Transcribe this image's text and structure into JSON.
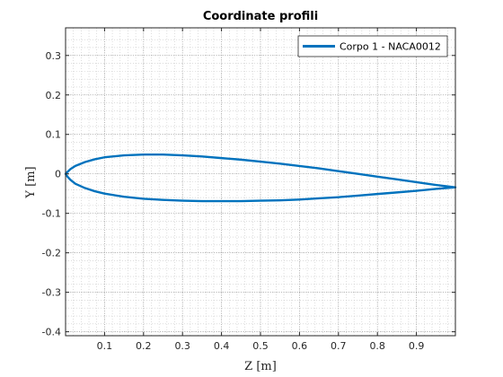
{
  "chart_data": {
    "type": "line",
    "title": "Coordinate profili",
    "xlabel": "Z [m]",
    "ylabel": "Y [m]",
    "xlim": [
      0,
      1
    ],
    "ylim": [
      -0.41,
      0.37
    ],
    "xticks": [
      0.1,
      0.2,
      0.3,
      0.4,
      0.5,
      0.6,
      0.7,
      0.8,
      0.9
    ],
    "xtick_labels": [
      "0.1",
      "0.2",
      "0.3",
      "0.4",
      "0.5",
      "0.6",
      "0.7",
      "0.8",
      "0.9"
    ],
    "yticks": [
      0.3,
      0.2,
      0.1,
      0,
      -0.1,
      -0.2,
      -0.3,
      -0.4
    ],
    "ytick_labels": [
      "0.3",
      "0.2",
      "0.1",
      "0",
      "-0.1",
      "-0.2",
      "-0.3",
      "-0.4"
    ],
    "grid": true,
    "minor_grid": true,
    "legend_position": "top-right",
    "series": [
      {
        "name": "Corpo 1 - NACA0012",
        "color": "#0072BD",
        "x": [
          1.0,
          0.95,
          0.9,
          0.85,
          0.8,
          0.75,
          0.7,
          0.65,
          0.6,
          0.55,
          0.5,
          0.45,
          0.4,
          0.35,
          0.3,
          0.25,
          0.2,
          0.15,
          0.1,
          0.075,
          0.05,
          0.025,
          0.0125,
          0.005,
          0.0,
          0.005,
          0.0125,
          0.025,
          0.05,
          0.075,
          0.1,
          0.15,
          0.2,
          0.25,
          0.3,
          0.35,
          0.4,
          0.45,
          0.5,
          0.55,
          0.6,
          0.65,
          0.7,
          0.75,
          0.8,
          0.85,
          0.9,
          0.95,
          1.0
        ],
        "y": [
          -0.034,
          -0.028,
          -0.021,
          -0.014,
          -0.007,
          0.0,
          0.007,
          0.014,
          0.02,
          0.026,
          0.031,
          0.036,
          0.04,
          0.044,
          0.047,
          0.049,
          0.049,
          0.047,
          0.042,
          0.037,
          0.03,
          0.02,
          0.012,
          0.005,
          0.0,
          -0.007,
          -0.015,
          -0.025,
          -0.036,
          -0.044,
          -0.05,
          -0.058,
          -0.063,
          -0.066,
          -0.068,
          -0.069,
          -0.069,
          -0.069,
          -0.068,
          -0.067,
          -0.065,
          -0.062,
          -0.059,
          -0.055,
          -0.051,
          -0.047,
          -0.043,
          -0.038,
          -0.034
        ]
      }
    ]
  }
}
